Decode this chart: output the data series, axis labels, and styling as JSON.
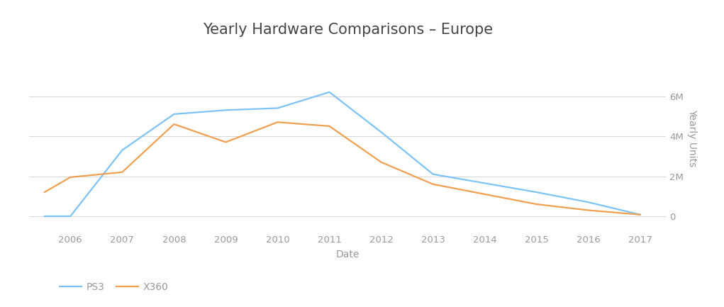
{
  "title": "Yearly Hardware Comparisons – Europe",
  "xlabel": "Date",
  "ylabel": "Yearly Units",
  "background_color": "#ffffff",
  "grid_color": "#d8d8d8",
  "ps3": {
    "label": "PS3",
    "color": "#7dc3f5",
    "x": [
      2005.5,
      2006,
      2007,
      2008,
      2009,
      2010,
      2011,
      2012,
      2013,
      2014,
      2015,
      2016,
      2017
    ],
    "y": [
      0,
      0,
      3300000,
      5100000,
      5300000,
      5400000,
      6200000,
      4200000,
      2100000,
      1650000,
      1200000,
      700000,
      80000
    ]
  },
  "x360": {
    "label": "X360",
    "color": "#f0a050",
    "x": [
      2005.5,
      2006,
      2007,
      2008,
      2009,
      2010,
      2011,
      2012,
      2013,
      2014,
      2015,
      2016,
      2017
    ],
    "y": [
      1200000,
      1950000,
      2200000,
      4600000,
      3700000,
      4700000,
      4500000,
      2700000,
      1600000,
      1100000,
      600000,
      300000,
      80000
    ]
  },
  "ylim": [
    -700000,
    8500000
  ],
  "yticks": [
    0,
    2000000,
    4000000,
    6000000
  ],
  "ytick_labels": [
    "0",
    "2M",
    "4M",
    "6M"
  ],
  "xlim": [
    2005.2,
    2017.5
  ],
  "xticks": [
    2006,
    2007,
    2008,
    2009,
    2010,
    2011,
    2012,
    2013,
    2014,
    2015,
    2016,
    2017
  ],
  "title_fontsize": 15,
  "axis_label_fontsize": 10,
  "tick_fontsize": 9.5,
  "legend_fontsize": 10,
  "line_width": 1.6,
  "title_color": "#444444",
  "tick_color": "#999999",
  "axis_label_color": "#999999"
}
